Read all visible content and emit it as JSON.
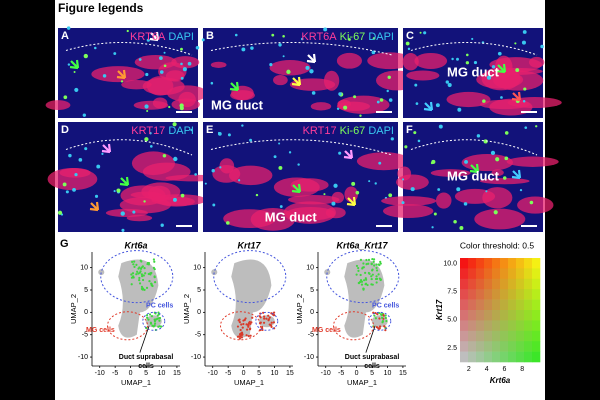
{
  "header": {
    "title": "Figure legends"
  },
  "panels": [
    {
      "label": "A",
      "stain": [
        {
          "text": "KRT6A",
          "color": "#ff3d9a"
        },
        {
          "text": "DAPI",
          "color": "#38c8f0"
        }
      ],
      "regions": []
    },
    {
      "label": "B",
      "stain": [
        {
          "text": "KRT6A",
          "color": "#ff3d9a"
        },
        {
          "text": "Ki-67",
          "color": "#7dff5a"
        },
        {
          "text": "DAPI",
          "color": "#38c8f0"
        }
      ],
      "regions": [
        "MG duct"
      ]
    },
    {
      "label": "C",
      "stain": [],
      "regions": [
        "MG duct"
      ]
    },
    {
      "label": "D",
      "stain": [
        {
          "text": "KRT17",
          "color": "#ff3d9a"
        },
        {
          "text": "DAPI",
          "color": "#38c8f0"
        }
      ],
      "regions": []
    },
    {
      "label": "E",
      "stain": [
        {
          "text": "KRT17",
          "color": "#ff3d9a"
        },
        {
          "text": "Ki-67",
          "color": "#7dff5a"
        },
        {
          "text": "DAPI",
          "color": "#38c8f0"
        }
      ],
      "regions": [
        "MG duct"
      ]
    },
    {
      "label": "F",
      "stain": [],
      "regions": [
        "MG duct"
      ]
    }
  ],
  "umap": {
    "label": "G",
    "xlabel": "UMAP_1",
    "ylabel": "UMAP_2",
    "xticks": [
      -10,
      -5,
      0,
      5,
      10,
      15
    ],
    "yticks": [
      -10,
      -5,
      0,
      5,
      10
    ],
    "plots": [
      {
        "title": "Krt6a",
        "annotations": {
          "pc": "PC cells",
          "mg": "MG cells",
          "duct": [
            "Duct suprabasal",
            "cells"
          ]
        }
      },
      {
        "title": "Krt17"
      },
      {
        "title": "Krt6a_Krt17",
        "annotations": {
          "pc": "PC cells",
          "mg": "MG cells",
          "duct": [
            "Duct suprabasal",
            "cells"
          ]
        }
      }
    ]
  },
  "legend": {
    "title": "Color threshold: 0.5",
    "xlabel": "Krt6a",
    "ylabel": "Krt17",
    "xticks": [
      "2",
      "4",
      "6",
      "8"
    ],
    "yticks": [
      "2.5",
      "5.0",
      "7.5",
      "10.0"
    ]
  }
}
